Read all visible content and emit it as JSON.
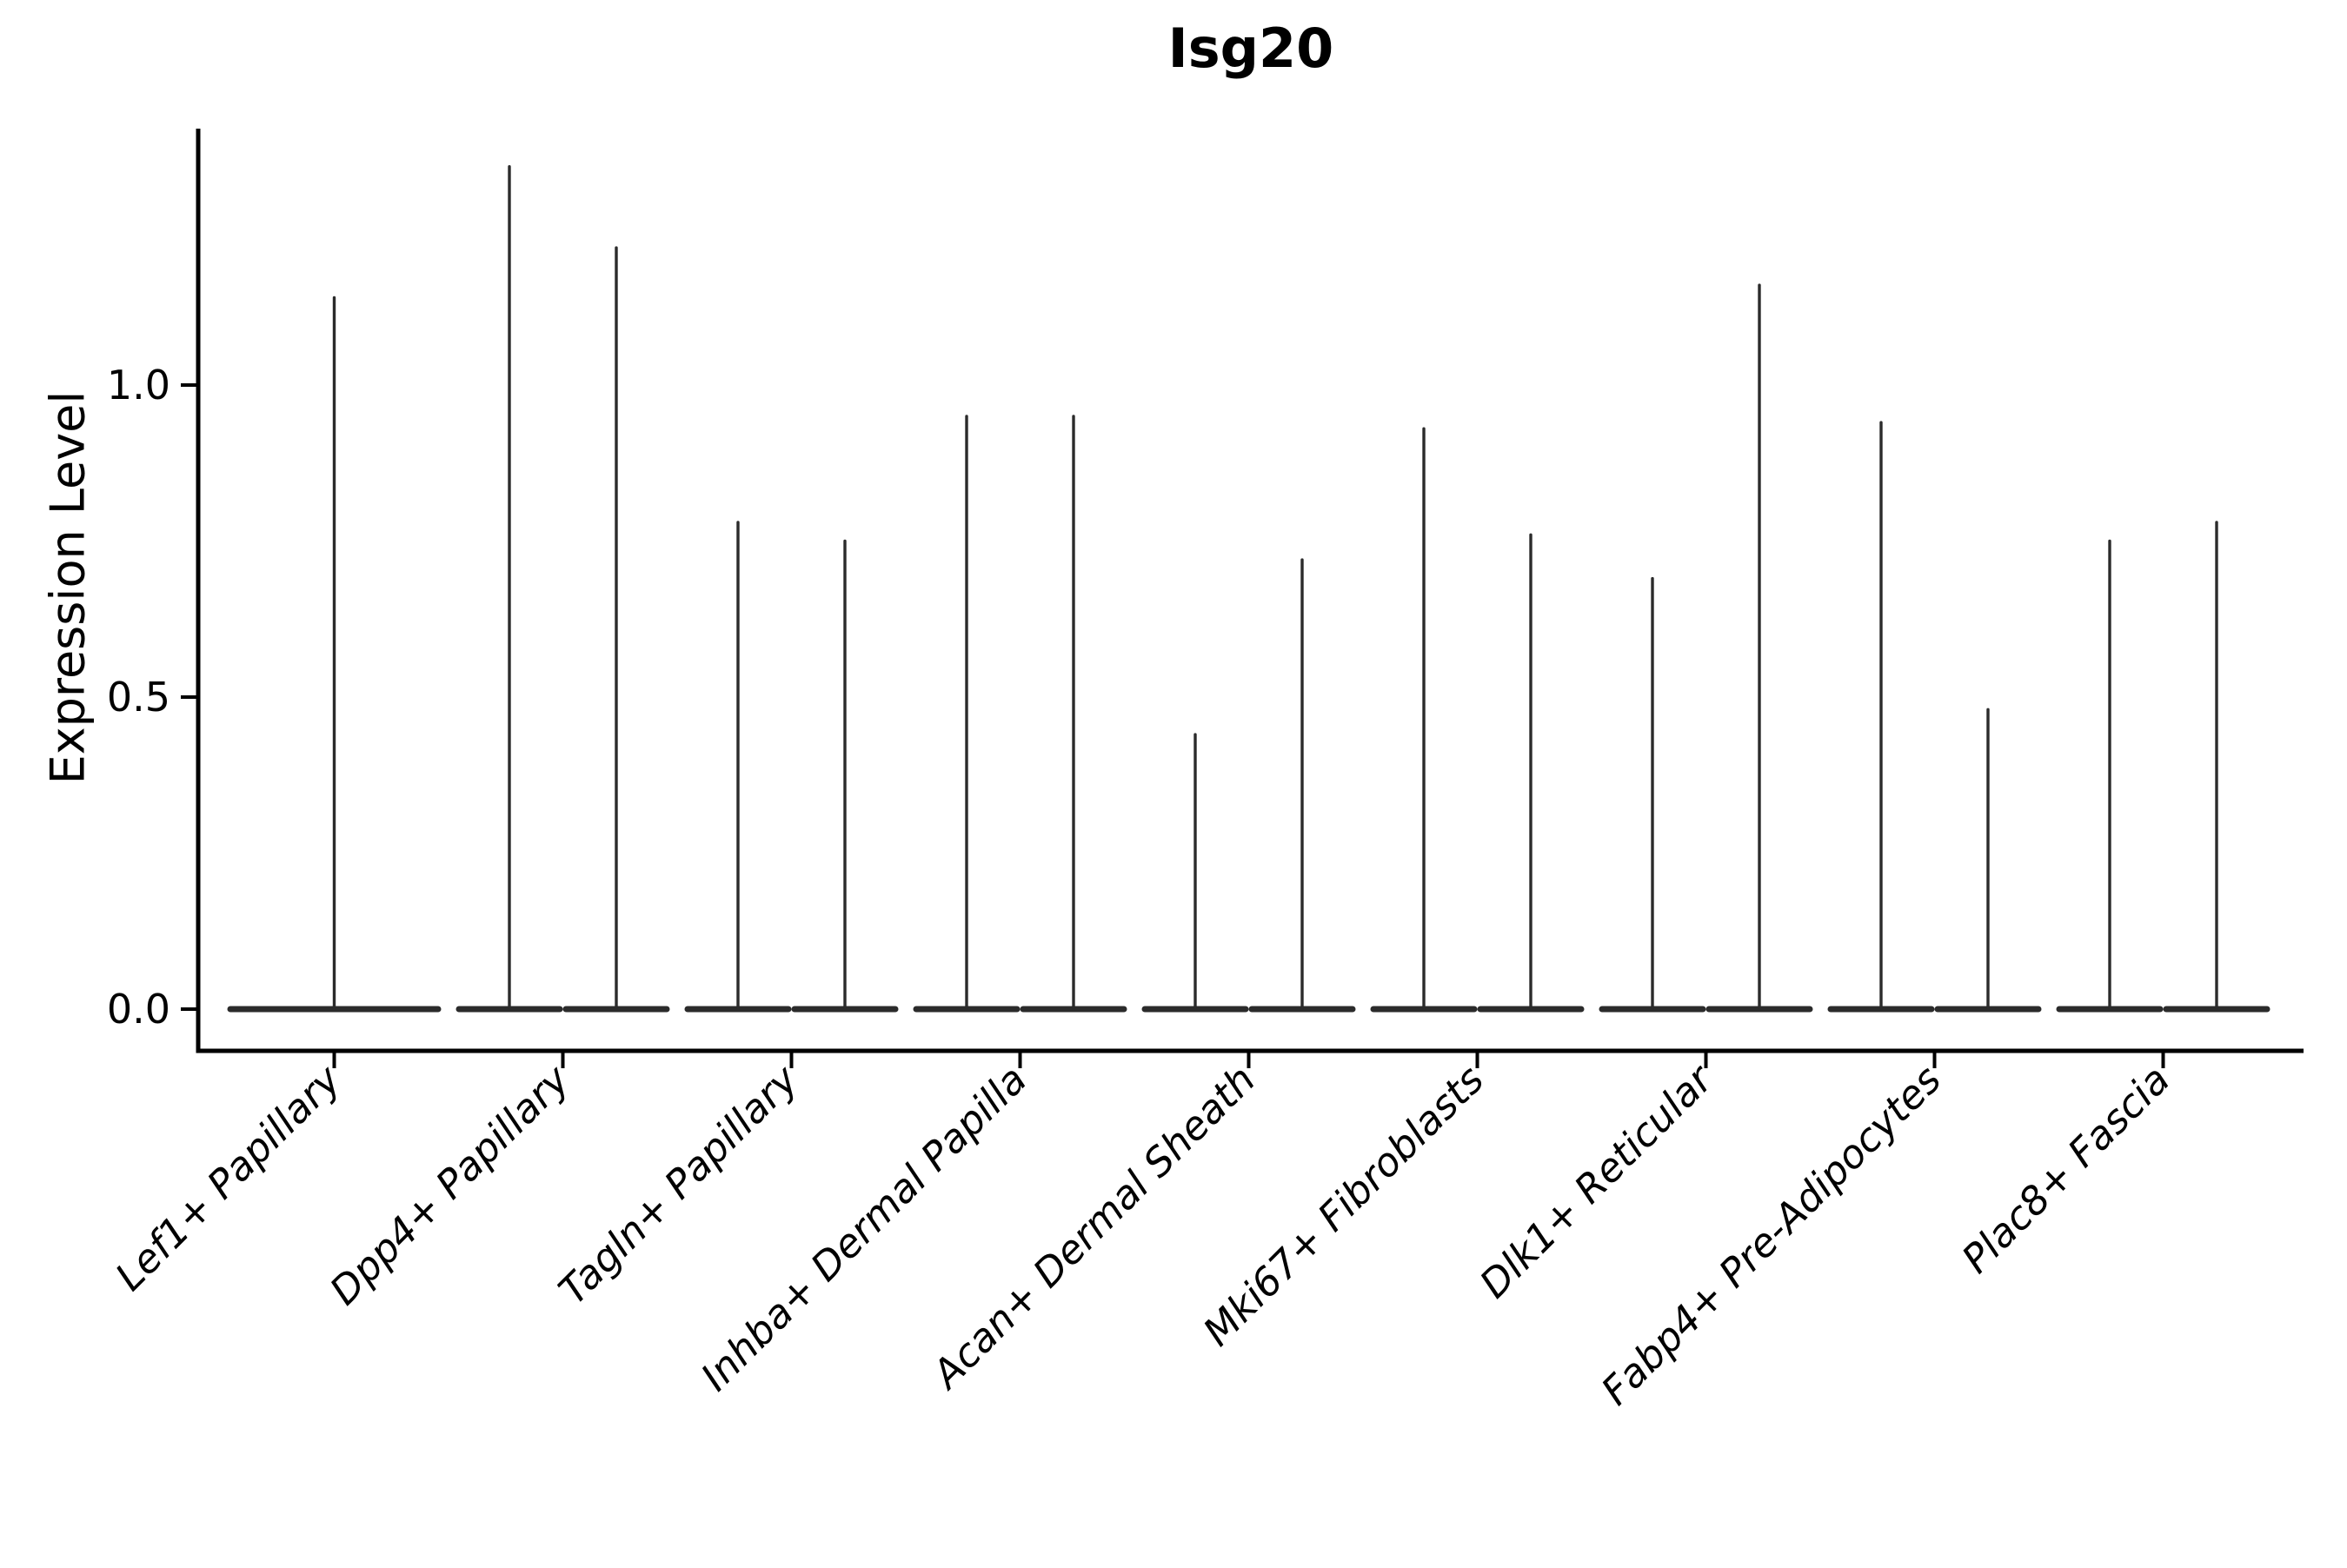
{
  "title": "Isg20",
  "colors": {
    "violin": "#2b2b2b",
    "axis": "#000000",
    "text": "#000000",
    "background": "#ffffff"
  },
  "chart_data": {
    "type": "violin",
    "title": "Isg20",
    "xlabel": "",
    "ylabel": "Expression Level",
    "ytick_labels": [
      "0.0",
      "0.5",
      "1.0"
    ],
    "ytick_values": [
      0.0,
      0.5,
      1.0
    ],
    "ylim": [
      -0.07,
      1.41
    ],
    "grid": false,
    "legend": "none",
    "distribution_note": "Each violin is a near-degenerate density: a wide flat base at expression 0 with a hair-thin spike rising to the maximum expression value. First category has a single centered violin; all other categories contain two side-by-side half-width violins.",
    "categories": [
      "Lef1+ Papillary",
      "Dpp4+ Papillary",
      "Tagln+ Papillary",
      "Inhba+ Dermal Papilla",
      "Acan+ Dermal Sheath",
      "Mki67+ Fibroblasts",
      "Dlk1+ Reticular",
      "Fabp4+ Pre-Adipocytes",
      "Plac8+ Fascia"
    ],
    "violins": [
      {
        "category": "Lef1+ Papillary",
        "spike_max_values": [
          1.14
        ]
      },
      {
        "category": "Dpp4+ Papillary",
        "spike_max_values": [
          1.35,
          1.22
        ]
      },
      {
        "category": "Tagln+ Papillary",
        "spike_max_values": [
          0.78,
          0.75
        ]
      },
      {
        "category": "Inhba+ Dermal Papilla",
        "spike_max_values": [
          0.95,
          0.95
        ]
      },
      {
        "category": "Acan+ Dermal Sheath",
        "spike_max_values": [
          0.44,
          0.72
        ]
      },
      {
        "category": "Mki67+ Fibroblasts",
        "spike_max_values": [
          0.93,
          0.76
        ]
      },
      {
        "category": "Dlk1+ Reticular",
        "spike_max_values": [
          0.69,
          1.16
        ]
      },
      {
        "category": "Fabp4+ Pre-Adipocytes",
        "spike_max_values": [
          0.94,
          0.48
        ]
      },
      {
        "category": "Plac8+ Fascia",
        "spike_max_values": [
          0.75,
          0.78
        ]
      }
    ]
  }
}
